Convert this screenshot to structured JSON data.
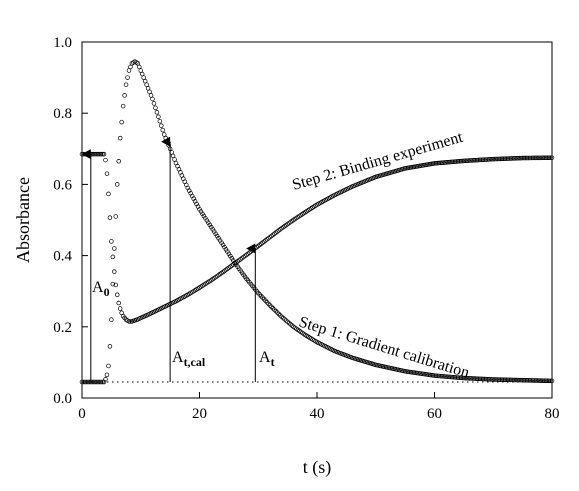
{
  "chart_data": {
    "type": "scatter",
    "title": "",
    "xlabel": "t (s)",
    "ylabel": "Absorbance",
    "xlim": [
      0,
      80
    ],
    "ylim": [
      0.0,
      1.0
    ],
    "xticks": [
      "0",
      "20",
      "40",
      "60",
      "80"
    ],
    "yticks": [
      "0.0",
      "0.2",
      "0.4",
      "0.6",
      "0.8",
      "1.0"
    ],
    "grid": false,
    "legend": "none",
    "marker": "open-circle",
    "series": [
      {
        "key": "gradient",
        "x": [
          0,
          1,
          2,
          3,
          3.8,
          4.2,
          4.6,
          5.0,
          5.5,
          6.0,
          6.5,
          7.0,
          7.5,
          8.0,
          8.5,
          9.0,
          9.5,
          10,
          11,
          12,
          13,
          14,
          15,
          16,
          18,
          20,
          22,
          24,
          26,
          28,
          30,
          32,
          34,
          36,
          38,
          40,
          43,
          46,
          50,
          55,
          60,
          65,
          70,
          75,
          80
        ],
        "y": [
          0.045,
          0.045,
          0.045,
          0.045,
          0.045,
          0.06,
          0.1,
          0.22,
          0.42,
          0.6,
          0.73,
          0.82,
          0.88,
          0.92,
          0.94,
          0.945,
          0.94,
          0.92,
          0.88,
          0.84,
          0.79,
          0.74,
          0.7,
          0.66,
          0.59,
          0.53,
          0.48,
          0.43,
          0.38,
          0.335,
          0.295,
          0.26,
          0.228,
          0.2,
          0.177,
          0.157,
          0.132,
          0.113,
          0.093,
          0.075,
          0.063,
          0.056,
          0.052,
          0.05,
          0.048
        ]
      },
      {
        "key": "binding",
        "x": [
          0,
          1,
          2,
          3,
          3.8,
          4.1,
          4.4,
          4.7,
          5.0,
          5.4,
          5.8,
          6.2,
          6.6,
          7.0,
          7.5,
          8.0,
          8.5,
          9.0,
          9.5,
          10,
          11,
          12,
          13,
          14,
          15,
          16,
          18,
          20,
          22,
          24,
          26,
          28,
          30,
          32,
          34,
          36,
          38,
          40,
          43,
          46,
          50,
          55,
          60,
          65,
          70,
          75,
          80
        ],
        "y": [
          0.685,
          0.685,
          0.685,
          0.685,
          0.685,
          0.66,
          0.6,
          0.52,
          0.44,
          0.37,
          0.31,
          0.27,
          0.245,
          0.23,
          0.22,
          0.215,
          0.215,
          0.218,
          0.221,
          0.225,
          0.232,
          0.24,
          0.248,
          0.256,
          0.264,
          0.272,
          0.29,
          0.31,
          0.331,
          0.354,
          0.378,
          0.402,
          0.427,
          0.452,
          0.477,
          0.5,
          0.522,
          0.543,
          0.57,
          0.594,
          0.621,
          0.645,
          0.659,
          0.666,
          0.671,
          0.674,
          0.675
        ]
      }
    ],
    "baseline_dotted_y": 0.045,
    "arrows": [
      {
        "key": "a0",
        "x": 1.5,
        "y_from": 0.045,
        "y_to": 0.685
      },
      {
        "key": "atcal",
        "x": 15,
        "y_from": 0.045,
        "y_to": 0.72
      },
      {
        "key": "at",
        "x": 29.5,
        "y_from": 0.045,
        "y_to": 0.42
      }
    ],
    "annotations": {
      "a0_main": "A",
      "a0_sub": "0",
      "atcal_main": "A",
      "atcal_sub": "t,cal",
      "at_main": "A",
      "at_sub": "t",
      "step2": "Step 2: Binding experiment",
      "step1": "Step 1: Gradient calibration"
    }
  }
}
